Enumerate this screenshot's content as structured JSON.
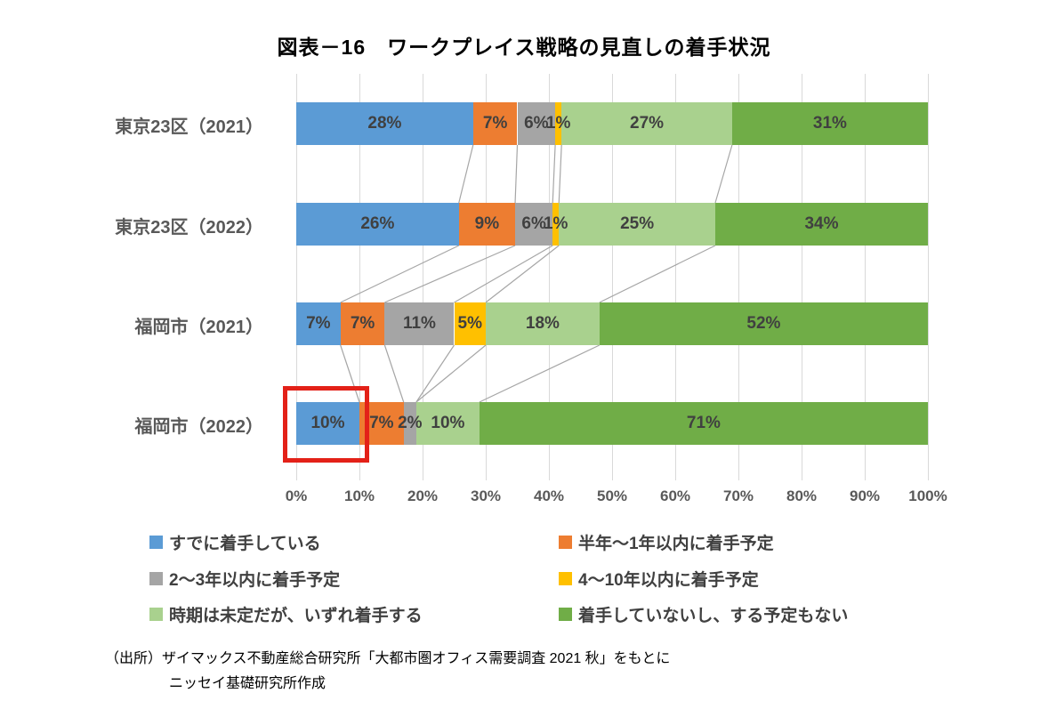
{
  "title": "図表－16　ワークプレイス戦略の見直しの着手状況",
  "chart_data": {
    "type": "bar",
    "variant": "horizontal-stacked-100",
    "title": "図表－16　ワークプレイス戦略の見直しの着手状況",
    "categories": [
      "東京23区（2021）",
      "東京23区（2022）",
      "福岡市（2021）",
      "福岡市（2022）"
    ],
    "series": [
      {
        "name": "すでに着手している",
        "color": "#5B9BD5",
        "values": [
          28,
          26,
          7,
          10
        ]
      },
      {
        "name": "半年～1年以内に着手予定",
        "color": "#ED7D31",
        "values": [
          7,
          9,
          7,
          7
        ]
      },
      {
        "name": "2～3年以内に着手予定",
        "color": "#A5A5A5",
        "values": [
          6,
          6,
          11,
          2
        ]
      },
      {
        "name": "4～10年以内に着手予定",
        "color": "#FFC000",
        "values": [
          1,
          1,
          5,
          0
        ]
      },
      {
        "name": "時期は未定だが、いずれ着手する",
        "color": "#A9D18E",
        "values": [
          27,
          25,
          18,
          10
        ]
      },
      {
        "name": "着手していないし、する予定もない",
        "color": "#70AD47",
        "values": [
          31,
          34,
          52,
          71
        ]
      }
    ],
    "x_axis": {
      "tick_labels": [
        "0%",
        "10%",
        "20%",
        "30%",
        "40%",
        "50%",
        "60%",
        "70%",
        "80%",
        "90%",
        "100%"
      ],
      "min": 0,
      "max": 100
    },
    "data_label_format": "percent",
    "grid": true,
    "gridline_color": "#d9d9d9",
    "connector_lines": true,
    "connector_color": "#a6a6a6",
    "legend_position": "bottom",
    "highlight": {
      "category": "福岡市（2022）",
      "series": "すでに着手している",
      "value": 10,
      "marker": "red-rectangle",
      "color": "#e32118"
    }
  },
  "source": {
    "line1": "（出所）ザイマックス不動産総合研究所「大都市圏オフィス需要調査 2021 秋」をもとに",
    "line2": "ニッセイ基礎研究所作成"
  }
}
